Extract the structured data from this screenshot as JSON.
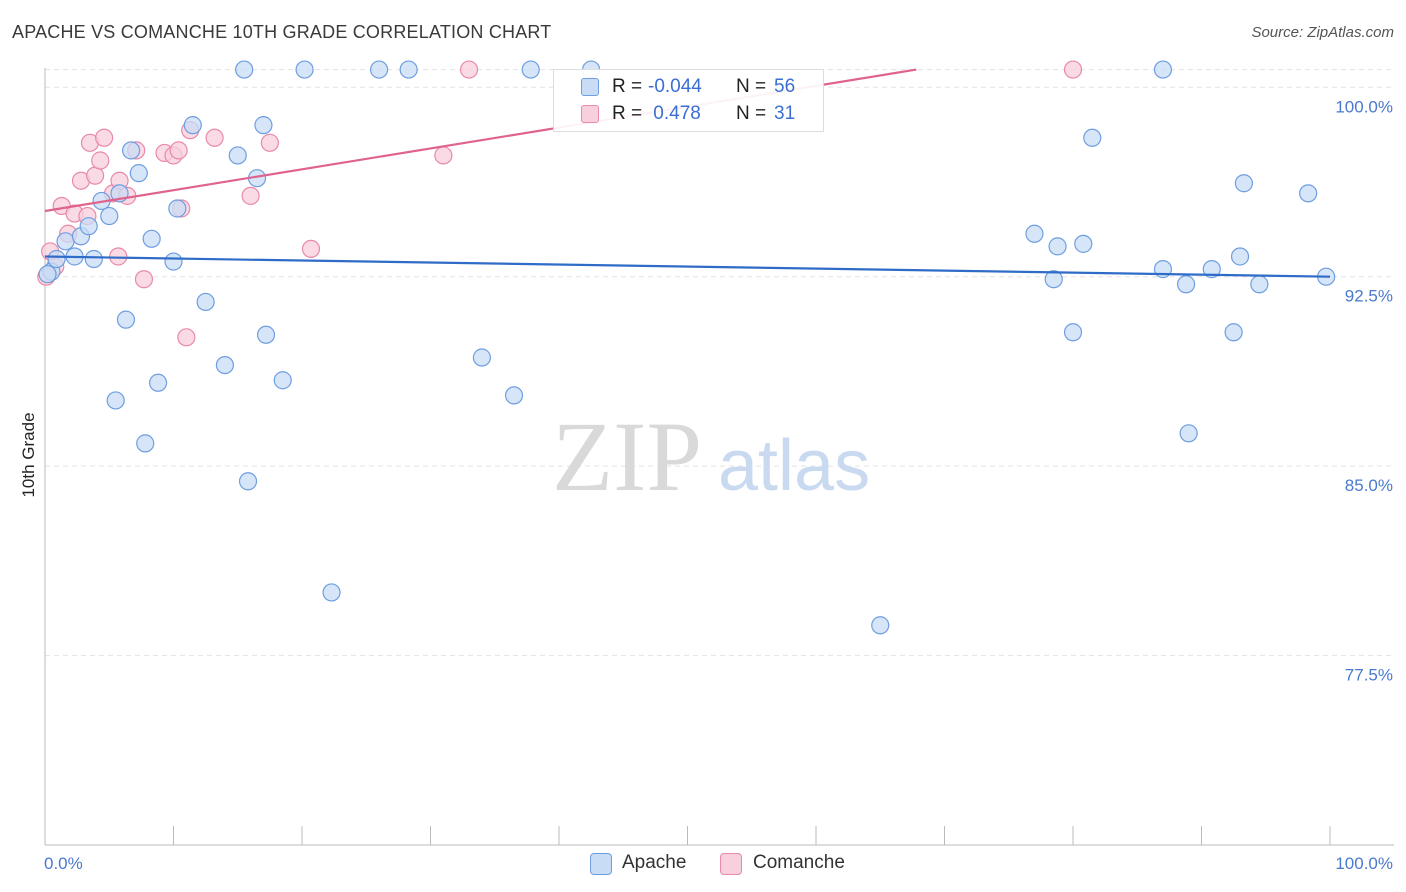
{
  "title": "APACHE VS COMANCHE 10TH GRADE CORRELATION CHART",
  "source": "Source: ZipAtlas.com",
  "watermark": {
    "zip": "ZIP",
    "atlas": "atlas"
  },
  "colors": {
    "apache_fill": "#c8dcf5",
    "apache_stroke": "#6f9ee0",
    "apache_line": "#2f6cc8",
    "comanche_fill": "#f8cfdc",
    "comanche_stroke": "#e88aa8",
    "comanche_line": "#e0628e",
    "tick_text": "#4a7acb",
    "grid": "#e3e3e3"
  },
  "legend": {
    "rows": [
      {
        "r_label": "R = ",
        "r_value": "-0.044",
        "n_label": "N = ",
        "n_value": "56"
      },
      {
        "r_label": "R = ",
        "r_value": " 0.478",
        "n_label": "N = ",
        "n_value": "31"
      }
    ]
  },
  "bottom_legend": {
    "apache": "Apache",
    "comanche": "Comanche"
  },
  "chart_data": {
    "type": "scatter",
    "title": "APACHE VS COMANCHE 10TH GRADE CORRELATION CHART",
    "xlabel": "",
    "ylabel": "10th Grade",
    "xlim": [
      0,
      100
    ],
    "ylim": [
      70.0,
      101.0
    ],
    "x_tick_labels": [
      "0.0%",
      "100.0%"
    ],
    "y_ticks": [
      77.5,
      85.0,
      92.5,
      100.0
    ],
    "y_tick_labels": [
      "77.5%",
      "85.0%",
      "92.5%",
      "100.0%"
    ],
    "series": [
      {
        "name": "Apache",
        "R": -0.044,
        "N": 56,
        "trend": {
          "x": [
            0,
            100
          ],
          "y": [
            93.3,
            92.5
          ]
        },
        "points": [
          {
            "x": 0.5,
            "y": 92.7
          },
          {
            "x": 0.9,
            "y": 93.2
          },
          {
            "x": 1.6,
            "y": 93.9
          },
          {
            "x": 2.3,
            "y": 93.3
          },
          {
            "x": 2.8,
            "y": 94.1
          },
          {
            "x": 3.4,
            "y": 94.5
          },
          {
            "x": 3.8,
            "y": 93.2
          },
          {
            "x": 4.4,
            "y": 95.5
          },
          {
            "x": 5.0,
            "y": 94.9
          },
          {
            "x": 5.5,
            "y": 87.6
          },
          {
            "x": 5.8,
            "y": 95.8
          },
          {
            "x": 6.3,
            "y": 90.8
          },
          {
            "x": 6.7,
            "y": 97.5
          },
          {
            "x": 7.3,
            "y": 96.6
          },
          {
            "x": 7.8,
            "y": 85.9
          },
          {
            "x": 8.3,
            "y": 94.0
          },
          {
            "x": 8.8,
            "y": 88.3
          },
          {
            "x": 10.0,
            "y": 93.1
          },
          {
            "x": 10.3,
            "y": 95.2
          },
          {
            "x": 11.5,
            "y": 98.5
          },
          {
            "x": 12.5,
            "y": 91.5
          },
          {
            "x": 14.0,
            "y": 89.0
          },
          {
            "x": 15.0,
            "y": 97.3
          },
          {
            "x": 15.5,
            "y": 100.7
          },
          {
            "x": 15.8,
            "y": 84.4
          },
          {
            "x": 16.5,
            "y": 96.4
          },
          {
            "x": 17.0,
            "y": 98.5
          },
          {
            "x": 17.2,
            "y": 90.2
          },
          {
            "x": 18.5,
            "y": 88.4
          },
          {
            "x": 20.2,
            "y": 100.7
          },
          {
            "x": 22.3,
            "y": 80.0
          },
          {
            "x": 26.0,
            "y": 100.7
          },
          {
            "x": 28.3,
            "y": 100.7
          },
          {
            "x": 34.0,
            "y": 89.3
          },
          {
            "x": 36.5,
            "y": 87.8
          },
          {
            "x": 37.8,
            "y": 100.7
          },
          {
            "x": 42.5,
            "y": 100.7
          },
          {
            "x": 65.0,
            "y": 78.7
          },
          {
            "x": 77.0,
            "y": 94.2
          },
          {
            "x": 78.5,
            "y": 92.4
          },
          {
            "x": 78.8,
            "y": 93.7
          },
          {
            "x": 80.0,
            "y": 90.3
          },
          {
            "x": 80.8,
            "y": 93.8
          },
          {
            "x": 81.5,
            "y": 98.0
          },
          {
            "x": 87.0,
            "y": 100.7
          },
          {
            "x": 87.0,
            "y": 92.8
          },
          {
            "x": 88.8,
            "y": 92.2
          },
          {
            "x": 89.0,
            "y": 86.3
          },
          {
            "x": 90.8,
            "y": 92.8
          },
          {
            "x": 92.5,
            "y": 90.3
          },
          {
            "x": 93.0,
            "y": 93.3
          },
          {
            "x": 93.3,
            "y": 96.2
          },
          {
            "x": 94.5,
            "y": 92.2
          },
          {
            "x": 98.3,
            "y": 95.8
          },
          {
            "x": 99.7,
            "y": 92.5
          },
          {
            "x": 0.2,
            "y": 92.6
          }
        ]
      },
      {
        "name": "Comanche",
        "R": 0.478,
        "N": 31,
        "trend": {
          "x": [
            0,
            67.8
          ],
          "y": [
            95.1,
            100.7
          ]
        },
        "points": [
          {
            "x": 0.4,
            "y": 93.5
          },
          {
            "x": 0.8,
            "y": 92.9
          },
          {
            "x": 1.3,
            "y": 95.3
          },
          {
            "x": 1.8,
            "y": 94.2
          },
          {
            "x": 2.3,
            "y": 95.0
          },
          {
            "x": 2.8,
            "y": 96.3
          },
          {
            "x": 3.3,
            "y": 94.9
          },
          {
            "x": 3.5,
            "y": 97.8
          },
          {
            "x": 3.9,
            "y": 96.5
          },
          {
            "x": 4.3,
            "y": 97.1
          },
          {
            "x": 4.6,
            "y": 98.0
          },
          {
            "x": 5.3,
            "y": 95.8
          },
          {
            "x": 5.7,
            "y": 93.3
          },
          {
            "x": 5.8,
            "y": 96.3
          },
          {
            "x": 6.4,
            "y": 95.7
          },
          {
            "x": 7.1,
            "y": 97.5
          },
          {
            "x": 7.7,
            "y": 92.4
          },
          {
            "x": 9.3,
            "y": 97.4
          },
          {
            "x": 10.0,
            "y": 97.3
          },
          {
            "x": 10.4,
            "y": 97.5
          },
          {
            "x": 10.6,
            "y": 95.2
          },
          {
            "x": 11.0,
            "y": 90.1
          },
          {
            "x": 11.3,
            "y": 98.3
          },
          {
            "x": 13.2,
            "y": 98.0
          },
          {
            "x": 16.0,
            "y": 95.7
          },
          {
            "x": 17.5,
            "y": 97.8
          },
          {
            "x": 20.7,
            "y": 93.6
          },
          {
            "x": 31.0,
            "y": 97.3
          },
          {
            "x": 33.0,
            "y": 100.7
          },
          {
            "x": 80.0,
            "y": 100.7
          },
          {
            "x": 0.1,
            "y": 92.5
          }
        ]
      }
    ]
  }
}
